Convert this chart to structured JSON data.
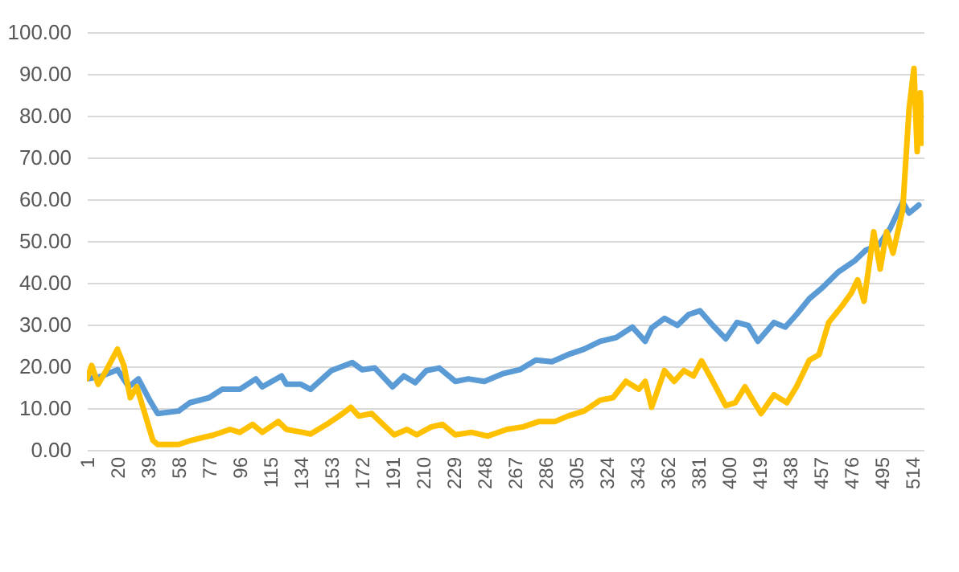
{
  "chart_data": {
    "type": "line",
    "xlim": [
      1,
      521
    ],
    "xticks": [
      1,
      20,
      39,
      58,
      77,
      96,
      115,
      134,
      153,
      172,
      191,
      210,
      229,
      248,
      267,
      286,
      305,
      324,
      343,
      362,
      381,
      400,
      419,
      438,
      457,
      476,
      495,
      514
    ],
    "ylim": [
      0,
      100
    ],
    "yticks": [
      {
        "value": 0,
        "label": "0.00"
      },
      {
        "value": 10,
        "label": "10.00"
      },
      {
        "value": 20,
        "label": "20.00"
      },
      {
        "value": 30,
        "label": "30.00"
      },
      {
        "value": 40,
        "label": "40.00"
      },
      {
        "value": 50,
        "label": "50.00"
      },
      {
        "value": 60,
        "label": "60.00"
      },
      {
        "value": 70,
        "label": "70.00"
      },
      {
        "value": 80,
        "label": "80.00"
      },
      {
        "value": 90,
        "label": "90.00"
      },
      {
        "value": 100,
        "label": "100.00"
      }
    ],
    "grid": "y",
    "marker": "none",
    "line_style": "solid",
    "series": [
      {
        "color": "#5b9bd5",
        "x": [
          1,
          9,
          20,
          27,
          33,
          40,
          45,
          58,
          65,
          77,
          85,
          96,
          106,
          110,
          122,
          125,
          134,
          140,
          153,
          166,
          172,
          180,
          191,
          198,
          205,
          212,
          220,
          230,
          238,
          248,
          260,
          270,
          280,
          290,
          300,
          310,
          320,
          330,
          340,
          348,
          352,
          360,
          368,
          375,
          382,
          390,
          398,
          405,
          412,
          418,
          428,
          435,
          442,
          450,
          458,
          468,
          478,
          485,
          493,
          500,
          508,
          512,
          518
        ],
        "values": [
          17,
          17.5,
          19.2,
          15.1,
          17,
          11.9,
          8.7,
          9.3,
          11.3,
          12.5,
          14.5,
          14.5,
          17,
          15.1,
          17.7,
          15.7,
          15.7,
          14.5,
          19,
          20.9,
          19.2,
          19.6,
          15.1,
          17.7,
          16.1,
          19,
          19.6,
          16.4,
          17,
          16.4,
          18.3,
          19.2,
          21.5,
          21.1,
          22.8,
          24.1,
          26,
          26.9,
          29.4,
          26,
          29.2,
          31.5,
          29.8,
          32.4,
          33.3,
          29.8,
          26.6,
          30.5,
          29.8,
          26,
          30.5,
          29.4,
          32.4,
          36.2,
          38.8,
          42.6,
          45.2,
          47.8,
          49,
          52.9,
          59.3,
          56.7,
          58.6
        ]
      },
      {
        "color": "#ffc000",
        "x": [
          1,
          4,
          8,
          13,
          20,
          24,
          28,
          32,
          36,
          42,
          45,
          58,
          66,
          80,
          90,
          96,
          104,
          110,
          120,
          125,
          135,
          140,
          150,
          160,
          165,
          170,
          178,
          185,
          192,
          200,
          206,
          215,
          222,
          230,
          240,
          250,
          262,
          272,
          282,
          292,
          300,
          310,
          320,
          328,
          336,
          344,
          348,
          352,
          360,
          366,
          372,
          378,
          383,
          390,
          398,
          404,
          410,
          414,
          420,
          428,
          436,
          442,
          450,
          456,
          462,
          470,
          476,
          480,
          484,
          490,
          494,
          498,
          502,
          508,
          512,
          515,
          517,
          519,
          520
        ],
        "values": [
          17,
          20.2,
          15.7,
          19,
          24.1,
          20.2,
          12.5,
          15.1,
          10,
          2.3,
          1.3,
          1.3,
          2.3,
          3.6,
          4.9,
          4.2,
          6.1,
          4.2,
          6.8,
          4.9,
          4.2,
          3.8,
          6.1,
          8.7,
          10.2,
          8.1,
          8.7,
          6.1,
          3.6,
          4.9,
          3.6,
          5.5,
          6.1,
          3.6,
          4.2,
          3.3,
          4.9,
          5.5,
          6.8,
          6.8,
          8.1,
          9.3,
          11.9,
          12.5,
          16.4,
          14.5,
          16.4,
          10.2,
          19,
          16.4,
          19,
          17.7,
          21.3,
          16.4,
          10.6,
          11.3,
          15.1,
          12.5,
          8.7,
          13.2,
          11.3,
          15.1,
          21.5,
          22.8,
          30.5,
          34.3,
          37.5,
          40.7,
          35.6,
          52.2,
          43.3,
          52.2,
          47.1,
          57.4,
          81.7,
          91.3,
          71.4,
          85.5,
          73.4
        ]
      }
    ]
  }
}
